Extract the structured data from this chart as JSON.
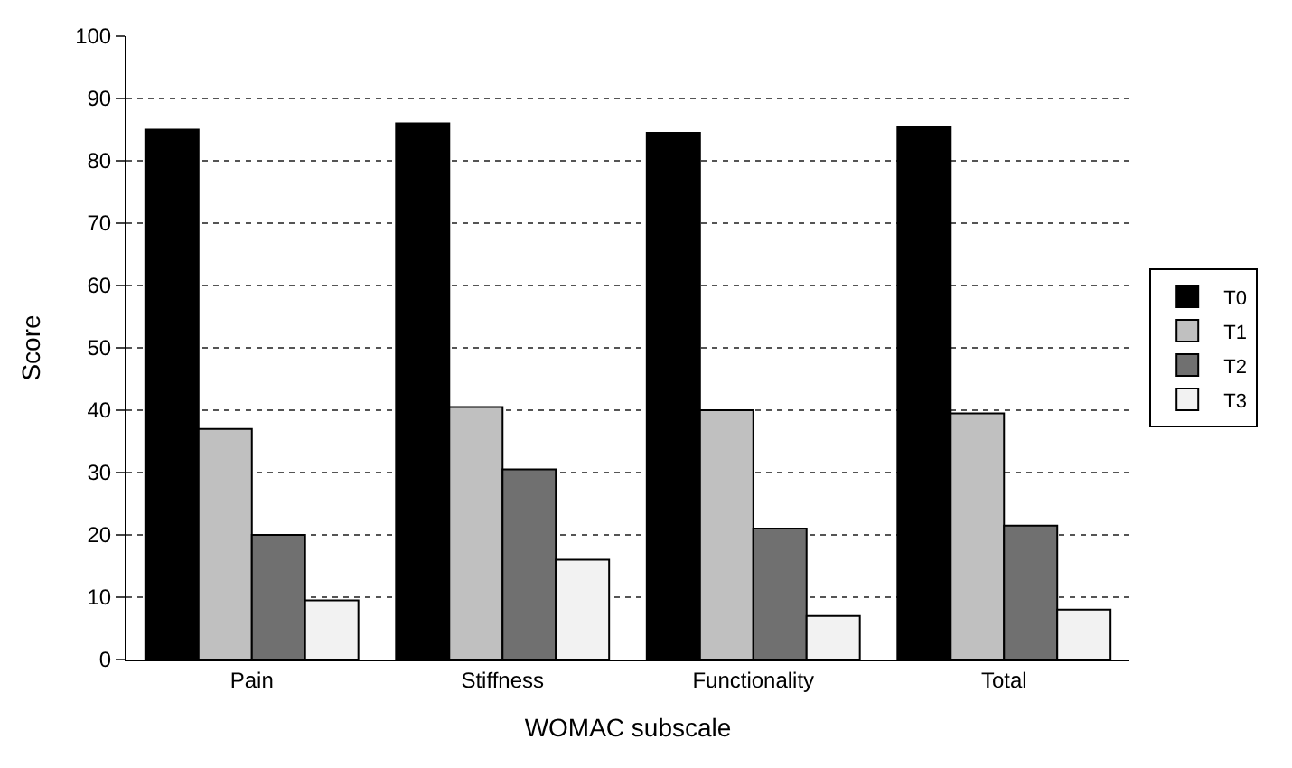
{
  "chart_data": {
    "type": "bar",
    "xlabel": "WOMAC subscale",
    "ylabel": "Score",
    "categories": [
      "Pain",
      "Stiffness",
      "Functionality",
      "Total"
    ],
    "series": [
      {
        "name": "T0",
        "color": "#000000",
        "values": [
          85,
          86,
          84.5,
          85.5
        ]
      },
      {
        "name": "T1",
        "color": "#c0c0c0",
        "values": [
          37,
          40.5,
          40,
          39.5
        ]
      },
      {
        "name": "T2",
        "color": "#707070",
        "values": [
          20,
          30.5,
          21,
          21.5
        ]
      },
      {
        "name": "T3",
        "color": "#f2f2f2",
        "values": [
          9.5,
          16,
          7,
          8
        ]
      }
    ],
    "ylim": [
      0,
      100
    ],
    "yticks": [
      0,
      10,
      20,
      30,
      40,
      50,
      60,
      70,
      80,
      90,
      100
    ],
    "grid": "y",
    "legend": "right"
  }
}
